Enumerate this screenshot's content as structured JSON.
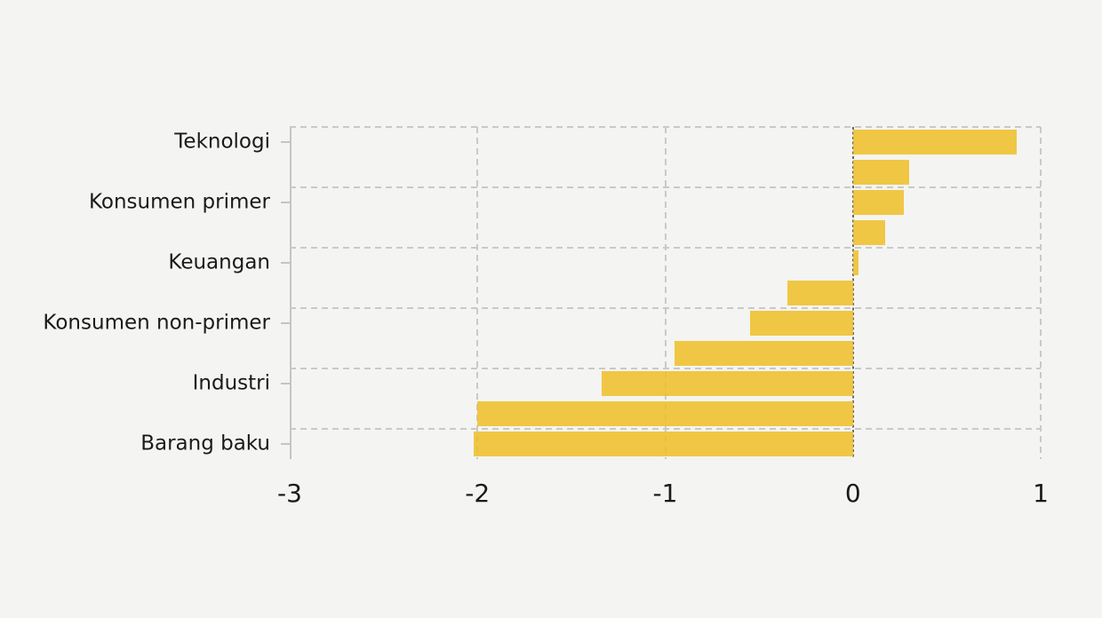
{
  "chart_data": {
    "type": "bar",
    "orientation": "horizontal",
    "title": "",
    "xlabel": "",
    "ylabel": "",
    "xlim": [
      -3,
      1
    ],
    "x_ticks": [
      "-3",
      "-2",
      "-1",
      "0",
      "1"
    ],
    "x_tick_values": [
      -3,
      -2,
      -1,
      0,
      1
    ],
    "categories": [
      "Teknologi",
      "Konsumen primer",
      "Keuangan",
      "Konsumen non-primer",
      "Industri",
      "Barang baku"
    ],
    "bars": [
      {
        "label": "Teknologi",
        "value": 0.87
      },
      {
        "label": "",
        "value": 0.3
      },
      {
        "label": "Konsumen primer",
        "value": 0.27
      },
      {
        "label": "",
        "value": 0.17
      },
      {
        "label": "Keuangan",
        "value": 0.03
      },
      {
        "label": "",
        "value": -0.35
      },
      {
        "label": "Konsumen non-primer",
        "value": -0.55
      },
      {
        "label": "",
        "value": -0.95
      },
      {
        "label": "Industri",
        "value": -1.34
      },
      {
        "label": "",
        "value": -2.0
      },
      {
        "label": "Barang baku",
        "value": -2.02
      }
    ],
    "grid": {
      "style": "dashed",
      "horizontal_lines": "every second bar boundary",
      "vertical_lines": "at x ticks",
      "zero_line": "dark dashed"
    },
    "legend": "none",
    "colors": {
      "background": "#f4f4f2",
      "bar": "#eec749",
      "bar_rgba": "rgba(238,190,38,0.85)",
      "grid": "#c9c9c9",
      "zero_line": "#6b6b6b",
      "axis": "#c4c4c4",
      "text": "#1a1a1a"
    }
  }
}
